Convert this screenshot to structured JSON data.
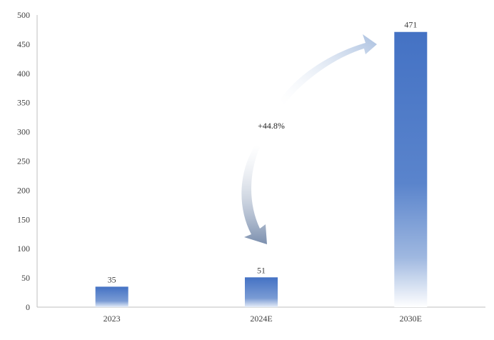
{
  "chart_data": {
    "type": "bar",
    "categories": [
      "2023",
      "2024E",
      "2030E"
    ],
    "values": [
      35,
      51,
      471
    ],
    "data_labels": [
      "35",
      "51",
      "471"
    ],
    "ylim": [
      0,
      500
    ],
    "yticks": [
      0,
      50,
      100,
      150,
      200,
      250,
      300,
      350,
      400,
      450,
      500
    ],
    "ytick_labels": [
      "0",
      "50",
      "100",
      "150",
      "200",
      "250",
      "300",
      "350",
      "400",
      "450",
      "500"
    ],
    "grid": false,
    "legend": "none",
    "annotation": {
      "text": "+44.8%",
      "style": "curved arrow from 2024E to 2030E"
    },
    "colors": {
      "bar_top": "#4472c4",
      "bar_bottom": "#ffffff",
      "arrow": "#8fa6c8",
      "axis": "#bfbfbf"
    }
  }
}
